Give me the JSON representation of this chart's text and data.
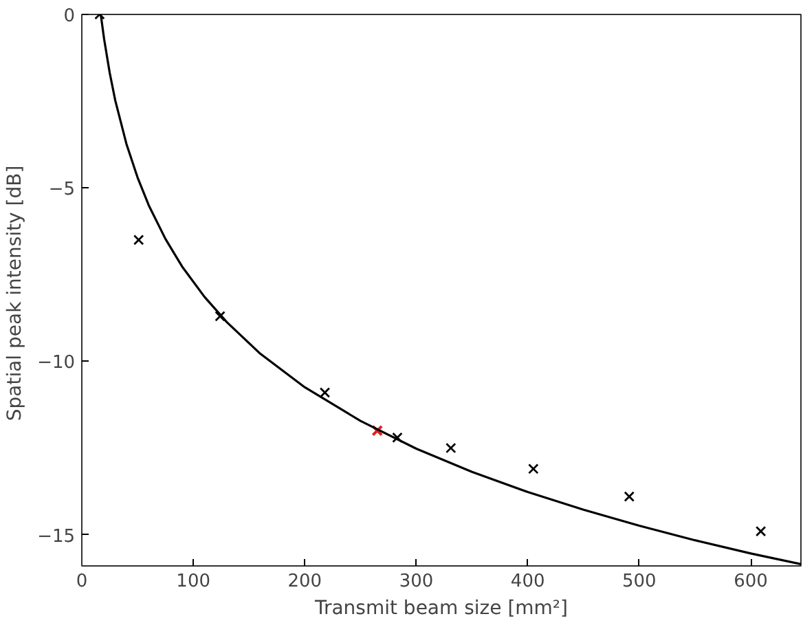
{
  "chart_data": {
    "type": "scatter",
    "xlabel": "Transmit beam size [mm²]",
    "ylabel": "Spatial peak intensity  [dB]",
    "xlim": [
      0,
      645
    ],
    "ylim": [
      -15.9,
      0
    ],
    "xticks": [
      0,
      100,
      200,
      300,
      400,
      500,
      600
    ],
    "yticks": [
      0,
      -5,
      -10,
      -15
    ],
    "grid": false,
    "marker": "cross",
    "series": [
      {
        "color": "#000000",
        "x": [
          16,
          51,
          124,
          218,
          283,
          331,
          405,
          491,
          609
        ],
        "values": [
          0,
          -6.5,
          -8.7,
          -10.9,
          -12.2,
          -12.5,
          -13.1,
          -13.9,
          -14.9
        ]
      },
      {
        "color": "#e02020",
        "x": [
          265
        ],
        "values": [
          -12.0
        ]
      },
      {
        "type": "line",
        "color": "#000000",
        "marker": "none",
        "x": [
          17,
          20,
          25,
          30,
          40,
          50,
          60,
          75,
          90,
          110,
          130,
          160,
          200,
          250,
          300,
          350,
          400,
          450,
          500,
          550,
          600,
          645
        ],
        "values": [
          0,
          -0.71,
          -1.68,
          -2.48,
          -3.73,
          -4.7,
          -5.5,
          -6.47,
          -7.27,
          -8.14,
          -8.87,
          -9.78,
          -10.75,
          -11.72,
          -12.52,
          -13.19,
          -13.77,
          -14.28,
          -14.74,
          -15.16,
          -15.54,
          -15.85
        ]
      }
    ]
  }
}
